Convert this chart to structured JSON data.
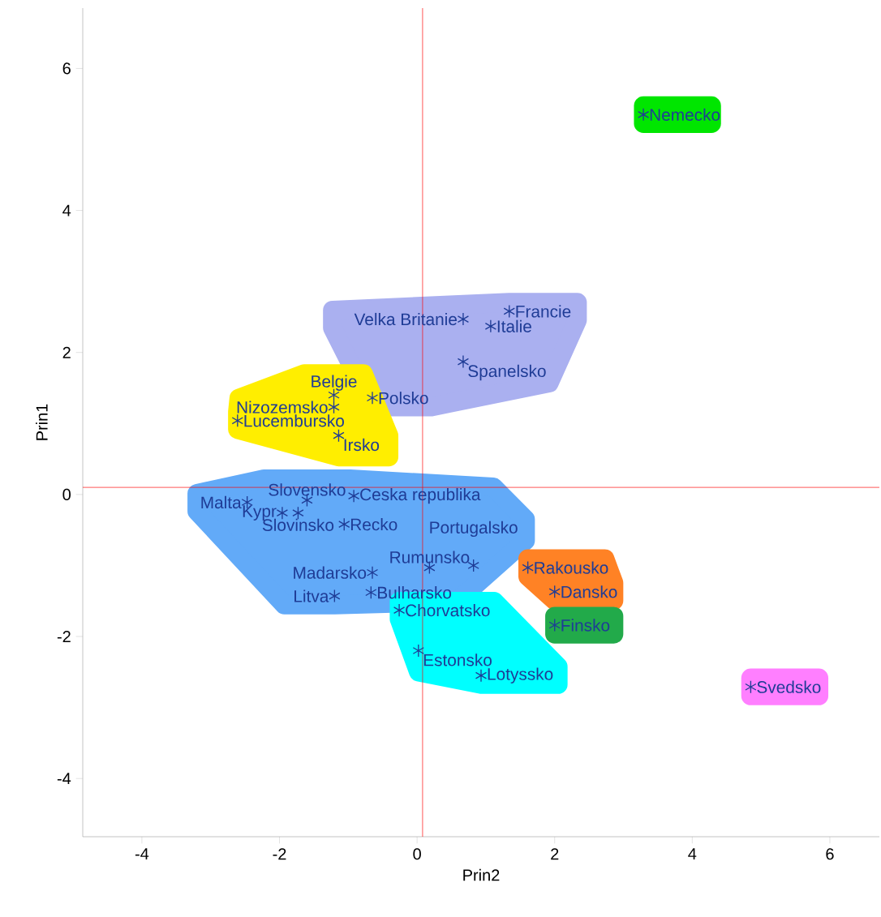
{
  "chart_data": {
    "type": "scatter",
    "xlabel": "Prin2",
    "ylabel": "Prin1",
    "xlim": [
      -4.86,
      6.72
    ],
    "ylim": [
      -4.82,
      6.85
    ],
    "xticks": [
      -4,
      -2,
      0,
      2,
      4,
      6
    ],
    "yticks": [
      -4,
      -2,
      0,
      2,
      4,
      6
    ],
    "marker": "cross",
    "grid": false,
    "series": [
      {
        "color": "#1f3c96",
        "x": [
          3.29
        ],
        "values": [
          5.35
        ]
      },
      {
        "color": "#1f3c96",
        "x": [
          1.34,
          0.67,
          1.07,
          0.67,
          -0.65
        ],
        "values": [
          2.58,
          2.47,
          2.37,
          1.87,
          1.36
        ]
      },
      {
        "color": "#1f3c96",
        "x": [
          -1.21,
          -1.21,
          -2.61,
          -1.14
        ],
        "values": [
          1.4,
          1.23,
          1.04,
          0.83
        ]
      },
      {
        "color": "#1f3c96",
        "x": [
          -1.6,
          -2.47,
          -1.96,
          -0.92,
          -1.06,
          -1.73,
          0.18,
          -0.65,
          -1.2,
          -0.67,
          0.82
        ],
        "values": [
          -0.08,
          -0.11,
          -0.26,
          -0.02,
          -0.42,
          -0.26,
          -1.03,
          -1.1,
          -1.43,
          -1.38,
          -1.0
        ]
      },
      {
        "color": "#1f3c96",
        "x": [
          1.61,
          2.0
        ],
        "values": [
          -1.03,
          -1.37
        ]
      },
      {
        "color": "#1f3c96",
        "x": [
          -0.26,
          0.02,
          0.93
        ],
        "values": [
          -1.63,
          -2.2,
          -2.55
        ]
      },
      {
        "color": "#1f3c96",
        "x": [
          2.0
        ],
        "values": [
          -1.84
        ]
      },
      {
        "color": "#1f3c96",
        "x": [
          4.85
        ],
        "values": [
          -2.71
        ]
      }
    ],
    "annotations": [
      {
        "text": "Nemecko",
        "x": 3.29,
        "y": 5.35
      },
      {
        "text": "Francie",
        "x": 1.34,
        "y": 2.58
      },
      {
        "text": "Velka Britanie",
        "x": 0.67,
        "y": 2.47
      },
      {
        "text": "Italie",
        "x": 1.07,
        "y": 2.37
      },
      {
        "text": "Spanelsko",
        "x": 0.67,
        "y": 1.87
      },
      {
        "text": "Polsko",
        "x": -0.65,
        "y": 1.36
      },
      {
        "text": "Belgie",
        "x": -1.21,
        "y": 1.4
      },
      {
        "text": "Nizozemsko",
        "x": -1.21,
        "y": 1.23
      },
      {
        "text": "Lucembursko",
        "x": -2.61,
        "y": 1.04
      },
      {
        "text": "Irsko",
        "x": -1.14,
        "y": 0.83
      },
      {
        "text": "Slovensko",
        "x": -1.6,
        "y": -0.08
      },
      {
        "text": "Malta",
        "x": -2.47,
        "y": -0.11
      },
      {
        "text": "Kypr",
        "x": -1.96,
        "y": -0.26
      },
      {
        "text": "Ceska republika",
        "x": -0.92,
        "y": -0.02
      },
      {
        "text": "Recko",
        "x": -1.06,
        "y": -0.42
      },
      {
        "text": "Slovinsko",
        "x": -1.73,
        "y": -0.26
      },
      {
        "text": "Rumunsko",
        "x": 0.18,
        "y": -1.03
      },
      {
        "text": "Madarsko",
        "x": -0.65,
        "y": -1.1
      },
      {
        "text": "Litva",
        "x": -1.2,
        "y": -1.43
      },
      {
        "text": "Bulharsko",
        "x": -0.67,
        "y": -1.38
      },
      {
        "text": "Portugalsko",
        "x": 0.82,
        "y": -1.0
      },
      {
        "text": "Rakousko",
        "x": 1.61,
        "y": -1.03
      },
      {
        "text": "Dansko",
        "x": 2.0,
        "y": -1.37
      },
      {
        "text": "Chorvatsko",
        "x": -0.26,
        "y": -1.63
      },
      {
        "text": "Estonsko",
        "x": 0.02,
        "y": -2.2
      },
      {
        "text": "Lotyssko",
        "x": 0.93,
        "y": -2.55
      },
      {
        "text": "Finsko",
        "x": 2.0,
        "y": -1.84
      },
      {
        "text": "Svedsko",
        "x": 4.85,
        "y": -2.71
      }
    ],
    "ref_lines": [
      {
        "axis": "x",
        "value": 0.08,
        "color": "#ff0000"
      },
      {
        "axis": "y",
        "value": 0.1,
        "color": "#ff0000"
      }
    ]
  }
}
